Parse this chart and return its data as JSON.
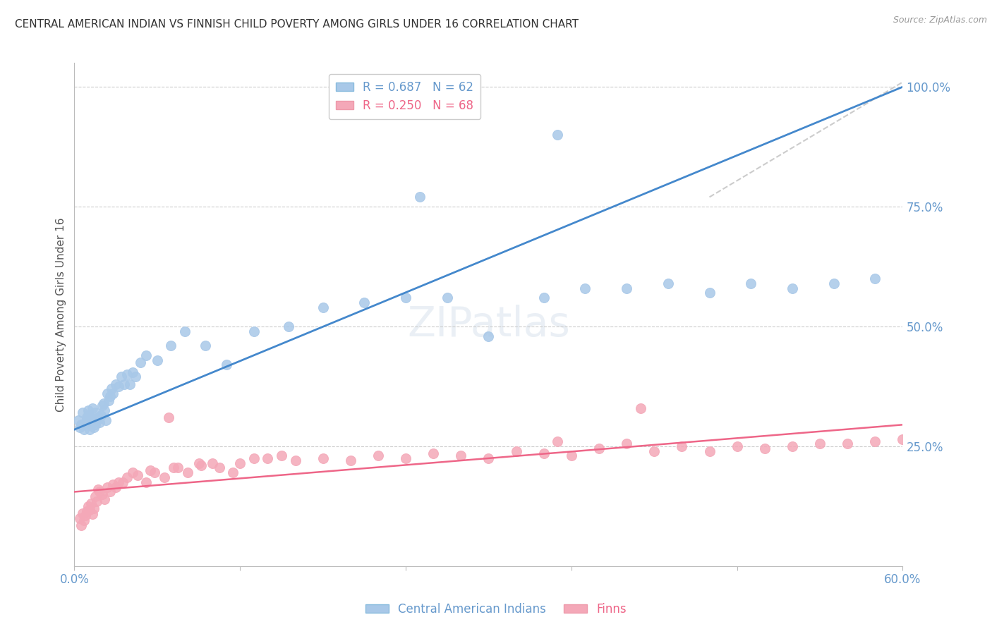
{
  "title": "CENTRAL AMERICAN INDIAN VS FINNISH CHILD POVERTY AMONG GIRLS UNDER 16 CORRELATION CHART",
  "source": "Source: ZipAtlas.com",
  "ylabel": "Child Poverty Among Girls Under 16",
  "right_yticks": [
    "100.0%",
    "75.0%",
    "50.0%",
    "25.0%"
  ],
  "right_ytick_vals": [
    1.0,
    0.75,
    0.5,
    0.25
  ],
  "blue_color": "#A8C8E8",
  "pink_color": "#F4A8B8",
  "blue_line_color": "#4488CC",
  "pink_line_color": "#EE6688",
  "diag_line_color": "#CCCCCC",
  "grid_color": "#CCCCCC",
  "axis_color": "#BBBBBB",
  "x_min": 0.0,
  "x_max": 0.6,
  "y_min": 0.0,
  "y_max": 1.05,
  "blue_line_x": [
    0.0,
    0.6
  ],
  "blue_line_y": [
    0.285,
    1.0
  ],
  "pink_line_x": [
    0.0,
    0.6
  ],
  "pink_line_y": [
    0.155,
    0.295
  ],
  "diag_line_x": [
    0.46,
    0.6
  ],
  "diag_line_y": [
    0.77,
    1.01
  ],
  "blue_scatter_x": [
    0.003,
    0.004,
    0.005,
    0.006,
    0.007,
    0.008,
    0.009,
    0.01,
    0.01,
    0.011,
    0.012,
    0.012,
    0.013,
    0.014,
    0.015,
    0.015,
    0.016,
    0.017,
    0.018,
    0.019,
    0.02,
    0.021,
    0.022,
    0.023,
    0.024,
    0.025,
    0.026,
    0.027,
    0.028,
    0.03,
    0.032,
    0.034,
    0.036,
    0.038,
    0.04,
    0.042,
    0.044,
    0.048,
    0.052,
    0.06,
    0.07,
    0.08,
    0.095,
    0.11,
    0.13,
    0.155,
    0.18,
    0.21,
    0.24,
    0.27,
    0.3,
    0.34,
    0.37,
    0.4,
    0.43,
    0.46,
    0.49,
    0.52,
    0.55,
    0.58,
    0.25,
    0.35
  ],
  "blue_scatter_y": [
    0.305,
    0.29,
    0.295,
    0.32,
    0.285,
    0.3,
    0.31,
    0.315,
    0.325,
    0.285,
    0.295,
    0.31,
    0.33,
    0.29,
    0.32,
    0.295,
    0.305,
    0.31,
    0.3,
    0.315,
    0.335,
    0.34,
    0.325,
    0.305,
    0.36,
    0.345,
    0.355,
    0.37,
    0.36,
    0.38,
    0.375,
    0.395,
    0.38,
    0.4,
    0.38,
    0.405,
    0.395,
    0.425,
    0.44,
    0.43,
    0.46,
    0.49,
    0.46,
    0.42,
    0.49,
    0.5,
    0.54,
    0.55,
    0.56,
    0.56,
    0.48,
    0.56,
    0.58,
    0.58,
    0.59,
    0.57,
    0.59,
    0.58,
    0.59,
    0.6,
    0.77,
    0.9
  ],
  "pink_scatter_x": [
    0.004,
    0.005,
    0.006,
    0.007,
    0.008,
    0.009,
    0.01,
    0.011,
    0.012,
    0.013,
    0.014,
    0.015,
    0.016,
    0.017,
    0.018,
    0.02,
    0.022,
    0.024,
    0.026,
    0.028,
    0.03,
    0.032,
    0.035,
    0.038,
    0.042,
    0.046,
    0.052,
    0.058,
    0.065,
    0.072,
    0.082,
    0.092,
    0.105,
    0.12,
    0.14,
    0.16,
    0.18,
    0.2,
    0.22,
    0.24,
    0.26,
    0.28,
    0.3,
    0.32,
    0.34,
    0.36,
    0.38,
    0.4,
    0.42,
    0.44,
    0.46,
    0.48,
    0.5,
    0.52,
    0.54,
    0.56,
    0.58,
    0.6,
    0.41,
    0.35,
    0.055,
    0.068,
    0.075,
    0.09,
    0.1,
    0.115,
    0.13,
    0.15
  ],
  "pink_scatter_y": [
    0.1,
    0.085,
    0.11,
    0.095,
    0.105,
    0.115,
    0.125,
    0.118,
    0.13,
    0.108,
    0.12,
    0.145,
    0.135,
    0.16,
    0.155,
    0.15,
    0.14,
    0.165,
    0.155,
    0.17,
    0.165,
    0.175,
    0.175,
    0.185,
    0.195,
    0.19,
    0.175,
    0.195,
    0.185,
    0.205,
    0.195,
    0.21,
    0.205,
    0.215,
    0.225,
    0.22,
    0.225,
    0.22,
    0.23,
    0.225,
    0.235,
    0.23,
    0.225,
    0.24,
    0.235,
    0.23,
    0.245,
    0.255,
    0.24,
    0.25,
    0.24,
    0.25,
    0.245,
    0.25,
    0.255,
    0.255,
    0.26,
    0.265,
    0.33,
    0.26,
    0.2,
    0.31,
    0.205,
    0.215,
    0.215,
    0.195,
    0.225,
    0.23
  ]
}
